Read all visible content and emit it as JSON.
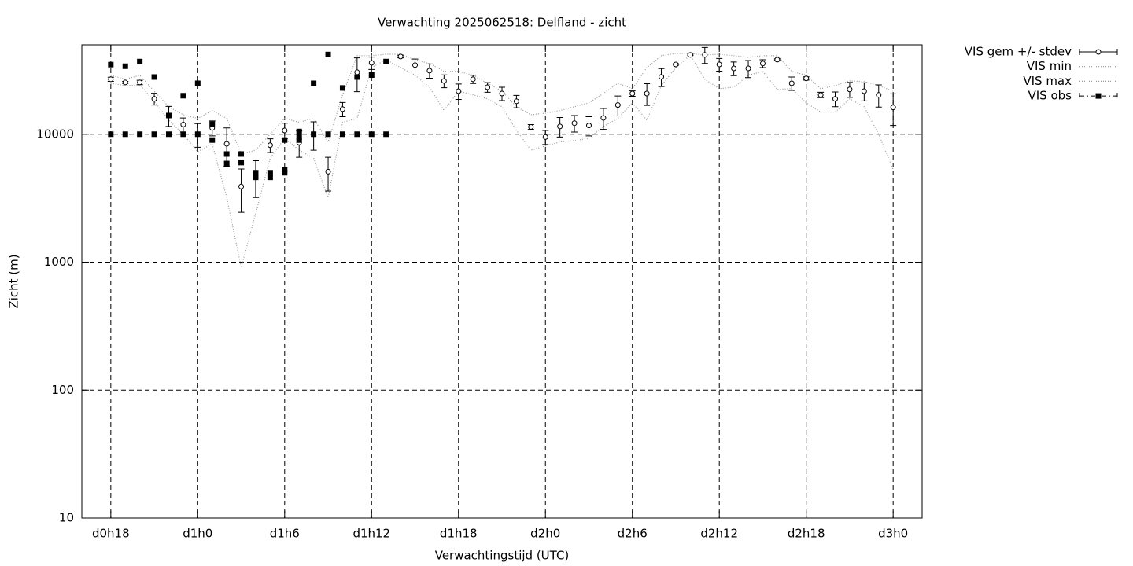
{
  "chart_data": {
    "type": "line",
    "title": "Verwachting 2025062518: Delfland - zicht",
    "xlabel": "Verwachtingstijd (UTC)",
    "ylabel": "Zicht (m)",
    "yscale": "log",
    "grid": true,
    "legend": "outside-top-right",
    "xlim": [
      16,
      74
    ],
    "ylim": [
      10,
      50000
    ],
    "xticks": [
      {
        "value": 18,
        "label": "d0h18"
      },
      {
        "value": 24,
        "label": "d1h0"
      },
      {
        "value": 30,
        "label": "d1h6"
      },
      {
        "value": 36,
        "label": "d1h12"
      },
      {
        "value": 42,
        "label": "d1h18"
      },
      {
        "value": 48,
        "label": "d2h0"
      },
      {
        "value": 54,
        "label": "d2h6"
      },
      {
        "value": 60,
        "label": "d2h12"
      },
      {
        "value": 66,
        "label": "d2h18"
      },
      {
        "value": 72,
        "label": "d3h0"
      }
    ],
    "yticks": [
      10,
      100,
      1000,
      10000
    ],
    "x": [
      18,
      19,
      20,
      21,
      22,
      23,
      24,
      25,
      26,
      27,
      28,
      29,
      30,
      31,
      32,
      33,
      34,
      35,
      36,
      37,
      38,
      39,
      40,
      41,
      42,
      43,
      44,
      45,
      46,
      47,
      48,
      49,
      50,
      51,
      52,
      53,
      54,
      55,
      56,
      57,
      58,
      59,
      60,
      61,
      62,
      63,
      64,
      65,
      66,
      67,
      68,
      69,
      70,
      71,
      72
    ],
    "series": [
      {
        "name": "VIS gem +/- stdev",
        "style": "errorbars",
        "color": "#000000",
        "values": [
          26900,
          25400,
          25400,
          18900,
          14000,
          11900,
          10000,
          11200,
          8400,
          3900,
          4700,
          8200,
          10700,
          8600,
          10000,
          5100,
          15700,
          30500,
          36100,
          null,
          40500,
          34700,
          31400,
          26100,
          21700,
          26900,
          23300,
          20800,
          18100,
          11400,
          9500,
          11500,
          12200,
          11700,
          13400,
          16900,
          20800,
          20800,
          28100,
          35100,
          41700,
          41700,
          35100,
          32700,
          32700,
          35700,
          38300,
          25000,
          27300,
          20300,
          18900,
          22400,
          21700,
          20300,
          16200
        ],
        "errors": [
          1000,
          500,
          1000,
          2000,
          2500,
          1500,
          2100,
          1500,
          2800,
          1450,
          1500,
          1000,
          1500,
          2000,
          2500,
          1500,
          2000,
          9000,
          4000,
          null,
          1000,
          4000,
          4000,
          3000,
          3000,
          2000,
          2000,
          2500,
          2000,
          500,
          1200,
          2000,
          1800,
          2000,
          2500,
          3000,
          1000,
          4000,
          4500,
          500,
          500,
          6000,
          4000,
          4000,
          5000,
          2500,
          500,
          3000,
          800,
          1000,
          2500,
          3000,
          3500,
          4000,
          4500
        ]
      },
      {
        "name": "VIS min",
        "style": "dotted",
        "color": "#999999",
        "values": [
          25000,
          24000,
          24300,
          18100,
          12900,
          10000,
          7300,
          8400,
          3200,
          910,
          2400,
          6500,
          9300,
          7500,
          6500,
          3200,
          12400,
          13300,
          33200,
          38300,
          33200,
          28900,
          23300,
          15300,
          21700,
          20300,
          18900,
          16400,
          10700,
          7500,
          8100,
          8700,
          8900,
          9300,
          11500,
          13300,
          17600,
          12900,
          24000,
          33200,
          41600,
          26900,
          22700,
          23300,
          28900,
          31000,
          22400,
          22700,
          17600,
          14900,
          14900,
          18900,
          16400,
          10000,
          5300
        ]
      },
      {
        "name": "VIS max",
        "style": "dotted",
        "color": "#999999",
        "values": [
          28900,
          26900,
          28900,
          21700,
          16400,
          14200,
          13300,
          15300,
          13300,
          7000,
          7500,
          10000,
          13300,
          12400,
          13300,
          8700,
          20300,
          41100,
          41100,
          42200,
          42200,
          38300,
          35700,
          31000,
          31000,
          28900,
          25000,
          21700,
          16400,
          14200,
          14600,
          15300,
          16400,
          17600,
          20800,
          25000,
          22700,
          33200,
          41100,
          42800,
          42800,
          41600,
          42200,
          41100,
          39900,
          41100,
          41100,
          31000,
          28900,
          22700,
          24000,
          26100,
          25800,
          24000,
          21700
        ]
      },
      {
        "name": "VIS obs",
        "style": "points",
        "color": "#000000",
        "x": [
          18,
          18,
          19,
          19,
          20,
          20,
          21,
          21,
          22,
          22,
          23,
          23,
          24,
          24,
          25,
          25,
          26,
          26,
          27,
          27,
          28,
          28,
          29,
          29,
          30,
          30,
          30,
          31,
          31,
          31,
          32,
          32,
          33,
          33,
          34,
          34,
          35,
          35,
          36,
          36,
          37,
          37
        ],
        "values": [
          35000,
          10000,
          34000,
          10000,
          37000,
          10000,
          28000,
          10000,
          14000,
          10000,
          20000,
          10000,
          25000,
          10000,
          12000,
          9000,
          7000,
          5900,
          7000,
          6000,
          5000,
          4600,
          5000,
          4600,
          9000,
          5300,
          5000,
          10500,
          9500,
          9000,
          25000,
          10000,
          42000,
          10000,
          23000,
          10000,
          28000,
          10000,
          29000,
          10000,
          37000,
          10000
        ]
      }
    ]
  }
}
